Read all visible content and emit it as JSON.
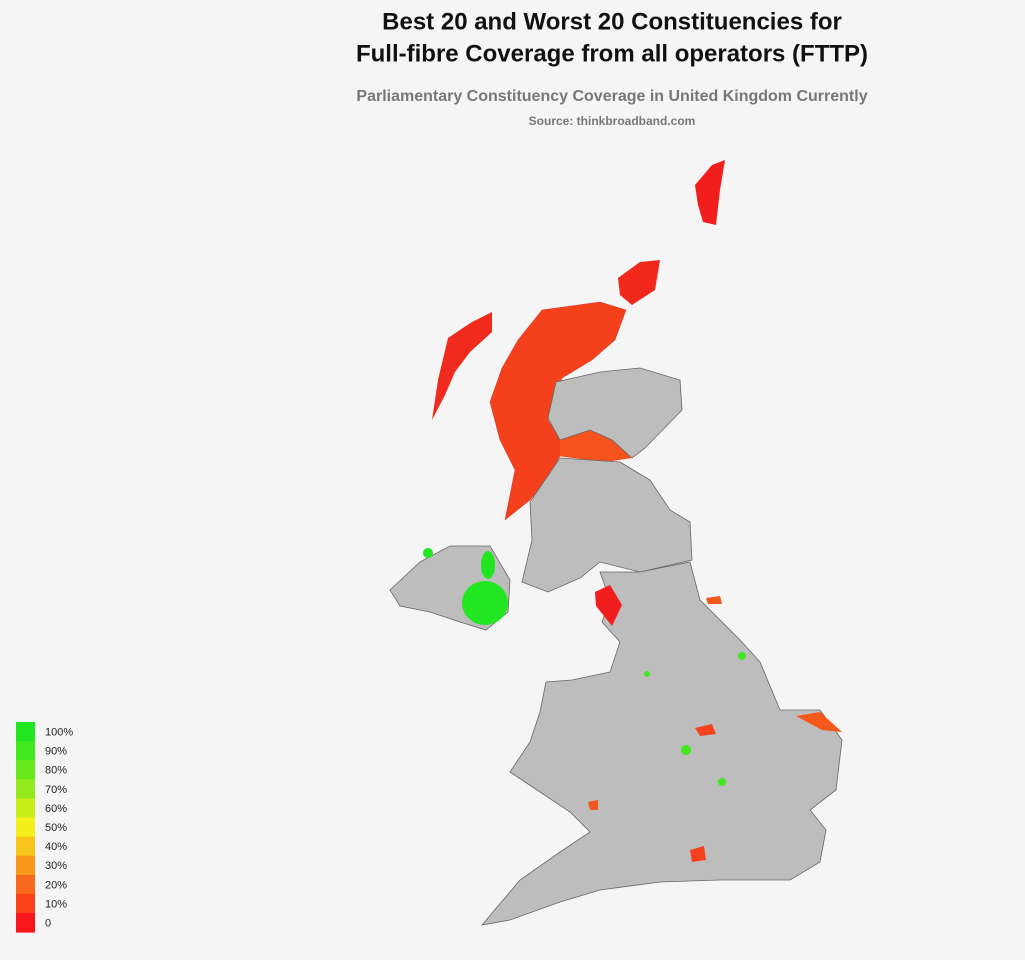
{
  "title": [
    "Best 20 and Worst 20 Constituencies for",
    "Full-fibre Coverage from all operators (FTTP)"
  ],
  "subtitle": "Parliamentary Constituency Coverage in United Kingdom Currently",
  "source": "Source: thinkbroadband.com",
  "legend": [
    {
      "label": "100%",
      "color": "#22e622"
    },
    {
      "label": "90%",
      "color": "#40e81c"
    },
    {
      "label": "80%",
      "color": "#66e81c"
    },
    {
      "label": "70%",
      "color": "#94ea1c"
    },
    {
      "label": "60%",
      "color": "#c8ee1c"
    },
    {
      "label": "50%",
      "color": "#f2ef1c"
    },
    {
      "label": "40%",
      "color": "#f7c61c"
    },
    {
      "label": "30%",
      "color": "#f79a1c"
    },
    {
      "label": "20%",
      "color": "#f7691c"
    },
    {
      "label": "10%",
      "color": "#f7421c"
    },
    {
      "label": "0",
      "color": "#f7161c"
    }
  ]
}
